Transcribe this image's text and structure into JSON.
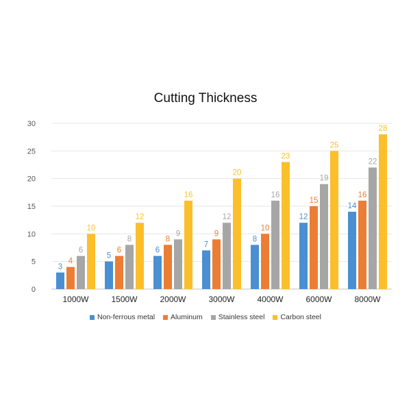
{
  "chart_data": {
    "type": "bar",
    "title": "Cutting Thickness",
    "categories": [
      "1000W",
      "1500W",
      "2000W",
      "3000W",
      "4000W",
      "6000W",
      "8000W"
    ],
    "series": [
      {
        "name": "Non-ferrous metal",
        "color": "#4a8fd1",
        "values": [
          3,
          5,
          6,
          7,
          8,
          12,
          14
        ]
      },
      {
        "name": "Aluminum",
        "color": "#ec7d34",
        "values": [
          4,
          6,
          8,
          9,
          10,
          15,
          16
        ]
      },
      {
        "name": "Stainless steel",
        "color": "#a6a6a6",
        "values": [
          6,
          8,
          9,
          12,
          16,
          19,
          22
        ]
      },
      {
        "name": "Carbon steel",
        "color": "#fbbf2a",
        "values": [
          10,
          12,
          16,
          20,
          23,
          25,
          28
        ]
      }
    ],
    "yticks": [
      "0",
      "5",
      "10",
      "15",
      "20",
      "25",
      "30"
    ],
    "ylim": [
      0,
      30
    ],
    "grid": true,
    "legend_position": "bottom"
  }
}
